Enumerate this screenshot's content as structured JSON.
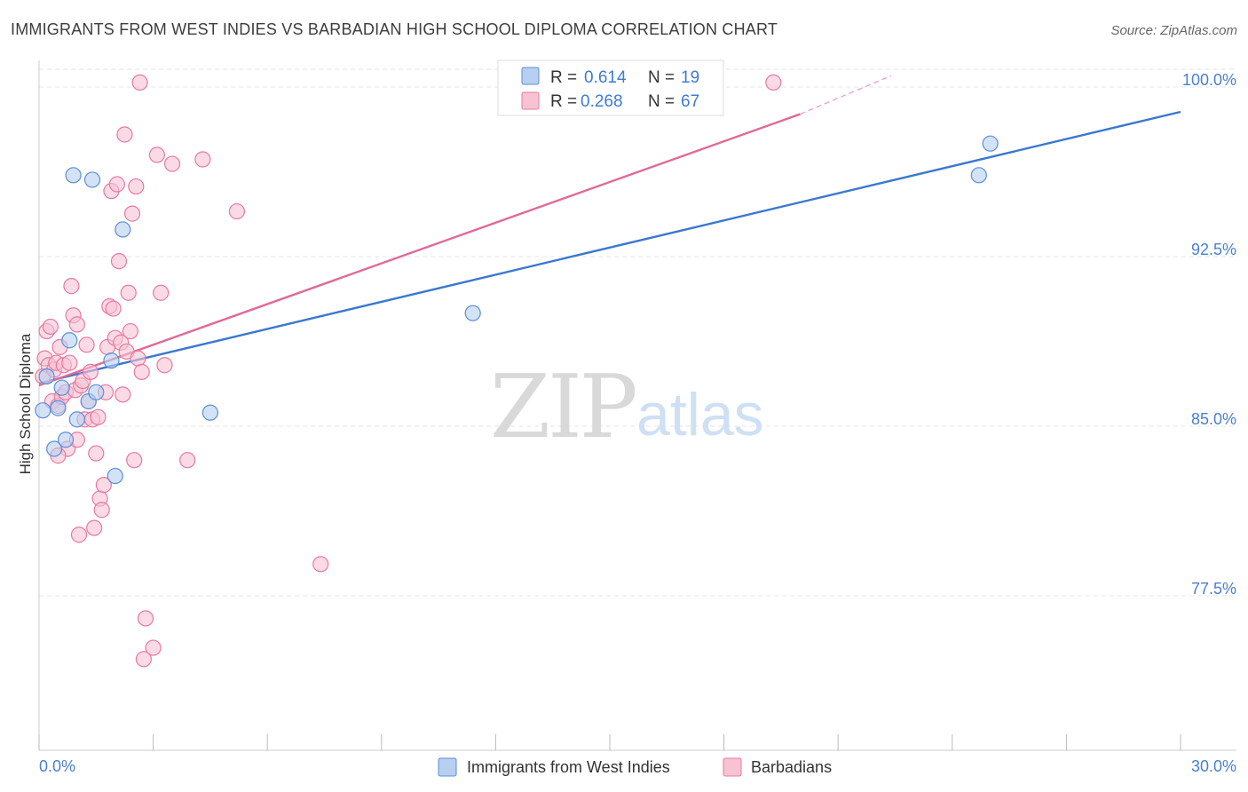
{
  "chart_data": {
    "type": "scatter",
    "title": "IMMIGRANTS FROM WEST INDIES VS BARBADIAN HIGH SCHOOL DIPLOMA CORRELATION CHART",
    "source": "Source: ZipAtlas.com",
    "xlabel": "",
    "ylabel": "High School Diploma",
    "xlim": [
      0.0,
      30.0
    ],
    "ylim": [
      70.0,
      101.0
    ],
    "x_tick_labels": [
      "0.0%",
      "30.0%"
    ],
    "y_ticks": [
      77.5,
      85.0,
      92.5,
      100.0
    ],
    "y_tick_labels": [
      "77.5%",
      "85.0%",
      "92.5%",
      "100.0%"
    ],
    "grid": true,
    "legend": {
      "position": "top-center",
      "rows": [
        {
          "r_label": "R =",
          "r_value": "0.614",
          "n_label": "N =",
          "n_value": "19"
        },
        {
          "r_label": "R =",
          "r_value": "0.268",
          "n_label": "N =",
          "n_value": "67"
        }
      ]
    },
    "series": [
      {
        "name": "Immigrants from West Indies",
        "color": "#5b8fd9",
        "fill": "#b7cff0",
        "trend": {
          "x": [
            0.0,
            30.0
          ],
          "y": [
            86.9,
            98.9
          ]
        },
        "points": [
          [
            0.1,
            85.7
          ],
          [
            0.2,
            87.2
          ],
          [
            0.4,
            84.0
          ],
          [
            0.5,
            85.8
          ],
          [
            0.6,
            86.7
          ],
          [
            0.7,
            84.4
          ],
          [
            0.8,
            88.8
          ],
          [
            0.9,
            96.1
          ],
          [
            1.0,
            85.3
          ],
          [
            1.3,
            86.1
          ],
          [
            1.4,
            95.9
          ],
          [
            1.5,
            86.5
          ],
          [
            1.9,
            87.9
          ],
          [
            2.0,
            82.8
          ],
          [
            2.2,
            93.7
          ],
          [
            4.5,
            85.6
          ],
          [
            11.4,
            90.0
          ],
          [
            24.7,
            96.1
          ],
          [
            25.0,
            97.5
          ]
        ]
      },
      {
        "name": "Barbadians",
        "color": "#e8799f",
        "fill": "#f7c3d3",
        "trend": {
          "x": [
            0.0,
            20.0
          ],
          "y": [
            86.8,
            98.8
          ]
        },
        "trend_extension": {
          "x": [
            20.0,
            22.4
          ],
          "y": [
            98.8,
            100.5
          ]
        },
        "points": [
          [
            0.1,
            87.2
          ],
          [
            0.15,
            88.0
          ],
          [
            0.2,
            89.2
          ],
          [
            0.25,
            87.7
          ],
          [
            0.3,
            89.4
          ],
          [
            0.35,
            86.1
          ],
          [
            0.4,
            87.5
          ],
          [
            0.45,
            87.8
          ],
          [
            0.5,
            85.9
          ],
          [
            0.55,
            88.5
          ],
          [
            0.6,
            86.3
          ],
          [
            0.65,
            87.7
          ],
          [
            0.7,
            86.5
          ],
          [
            0.75,
            84.0
          ],
          [
            0.8,
            87.8
          ],
          [
            0.85,
            91.2
          ],
          [
            0.9,
            89.9
          ],
          [
            0.95,
            86.6
          ],
          [
            1.0,
            89.5
          ],
          [
            1.05,
            80.2
          ],
          [
            1.1,
            86.8
          ],
          [
            1.15,
            87.0
          ],
          [
            1.2,
            85.3
          ],
          [
            1.25,
            88.6
          ],
          [
            1.3,
            86.1
          ],
          [
            1.35,
            87.4
          ],
          [
            1.4,
            85.3
          ],
          [
            1.45,
            80.5
          ],
          [
            1.5,
            83.8
          ],
          [
            1.55,
            85.4
          ],
          [
            1.6,
            81.8
          ],
          [
            1.65,
            81.3
          ],
          [
            1.7,
            82.4
          ],
          [
            1.75,
            86.5
          ],
          [
            1.8,
            88.5
          ],
          [
            1.85,
            90.3
          ],
          [
            1.9,
            95.4
          ],
          [
            1.95,
            90.2
          ],
          [
            2.0,
            88.9
          ],
          [
            2.05,
            95.7
          ],
          [
            2.1,
            92.3
          ],
          [
            2.15,
            88.7
          ],
          [
            2.2,
            86.4
          ],
          [
            2.25,
            97.9
          ],
          [
            2.3,
            88.3
          ],
          [
            2.35,
            90.9
          ],
          [
            2.4,
            89.2
          ],
          [
            2.45,
            94.4
          ],
          [
            2.5,
            83.5
          ],
          [
            2.55,
            95.6
          ],
          [
            2.6,
            88.0
          ],
          [
            2.65,
            100.2
          ],
          [
            2.7,
            87.4
          ],
          [
            2.75,
            74.7
          ],
          [
            2.8,
            76.5
          ],
          [
            3.0,
            75.2
          ],
          [
            3.1,
            97.0
          ],
          [
            3.2,
            90.9
          ],
          [
            3.5,
            96.6
          ],
          [
            3.9,
            83.5
          ],
          [
            4.3,
            96.8
          ],
          [
            5.2,
            94.5
          ],
          [
            7.4,
            78.9
          ],
          [
            19.3,
            100.2
          ],
          [
            0.5,
            83.7
          ],
          [
            1.0,
            84.4
          ],
          [
            3.3,
            87.7
          ]
        ]
      }
    ]
  }
}
